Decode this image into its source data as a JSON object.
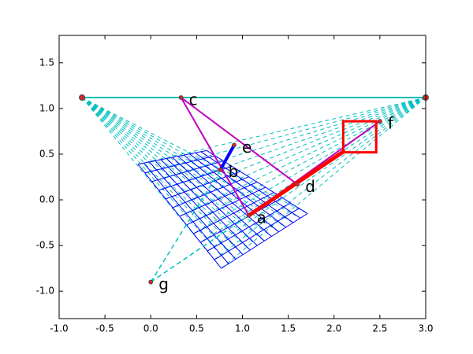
{
  "chart_data": {
    "type": "geometry",
    "xlim": [
      -1,
      3
    ],
    "ylim": [
      -1.3,
      1.8
    ],
    "xticks": [
      {
        "value": -1,
        "label": "-1.0"
      },
      {
        "value": -0.5,
        "label": "-0.5"
      },
      {
        "value": 0,
        "label": "0.0"
      },
      {
        "value": 0.5,
        "label": "0.5"
      },
      {
        "value": 1,
        "label": "1.0"
      },
      {
        "value": 1.5,
        "label": "1.5"
      },
      {
        "value": 2,
        "label": "2.0"
      },
      {
        "value": 2.5,
        "label": "2.5"
      },
      {
        "value": 3,
        "label": "3.0"
      }
    ],
    "yticks": [
      {
        "value": -1,
        "label": "-1.0"
      },
      {
        "value": -0.5,
        "label": "-0.5"
      },
      {
        "value": 0,
        "label": "0.0"
      },
      {
        "value": 0.5,
        "label": "0.5"
      },
      {
        "value": 1,
        "label": "1.0"
      },
      {
        "value": 1.5,
        "label": "1.5"
      }
    ],
    "vanishing_points": {
      "x": [
        -0.75,
        3.0
      ],
      "y": [
        1.12,
        1.12
      ],
      "color": "#00bfbf",
      "dot_color": "#d62728"
    },
    "grid": {
      "x": [
        -0.14,
        0.61,
        1.71,
        0.77
      ],
      "y": [
        0.39,
        0.54,
        -0.15,
        -0.75
      ],
      "divisions": 12,
      "color": "#0000ff"
    },
    "points": [
      {
        "name": "a",
        "x": 1.07,
        "y": -0.17
      },
      {
        "name": "b",
        "x": 0.76,
        "y": 0.33
      },
      {
        "name": "c",
        "x": 0.33,
        "y": 1.12
      },
      {
        "name": "d",
        "x": 1.6,
        "y": 0.17
      },
      {
        "name": "e",
        "x": 0.91,
        "y": 0.6
      },
      {
        "name": "f",
        "x": 2.5,
        "y": 0.86
      },
      {
        "name": "g",
        "x": 0,
        "y": -0.9
      }
    ],
    "segments": [
      {
        "x": [
          0.33,
          1.07
        ],
        "y": [
          1.12,
          -0.17
        ],
        "color": "#bf00bf",
        "width": 2,
        "dash": false
      },
      {
        "x": [
          0.33,
          1.6
        ],
        "y": [
          1.12,
          0.17
        ],
        "color": "#bf00bf",
        "width": 2,
        "dash": false
      },
      {
        "x": [
          1.07,
          2.5
        ],
        "y": [
          -0.17,
          0.86
        ],
        "color": "#bf00bf",
        "width": 2,
        "dash": false
      },
      {
        "x": [
          1.07,
          2.12
        ],
        "y": [
          -0.17,
          0.54
        ],
        "color": "#ff0000",
        "width": 5,
        "dash": false
      },
      {
        "x": [
          0.76,
          0.91
        ],
        "y": [
          0.33,
          0.6
        ],
        "color": "#0000ff",
        "width": 4,
        "dash": false
      },
      {
        "x": [
          0,
          1.07
        ],
        "y": [
          -0.9,
          -0.17
        ],
        "color": "#00bfbf",
        "width": 1.5,
        "dash": true
      },
      {
        "x": [
          0,
          0.76
        ],
        "y": [
          -0.9,
          0.33
        ],
        "color": "#00bfbf",
        "width": 1.5,
        "dash": true
      }
    ],
    "rectangle": {
      "x": [
        2.1,
        2.46
      ],
      "y": [
        0.52,
        0.86
      ],
      "color": "#ff0000"
    }
  }
}
